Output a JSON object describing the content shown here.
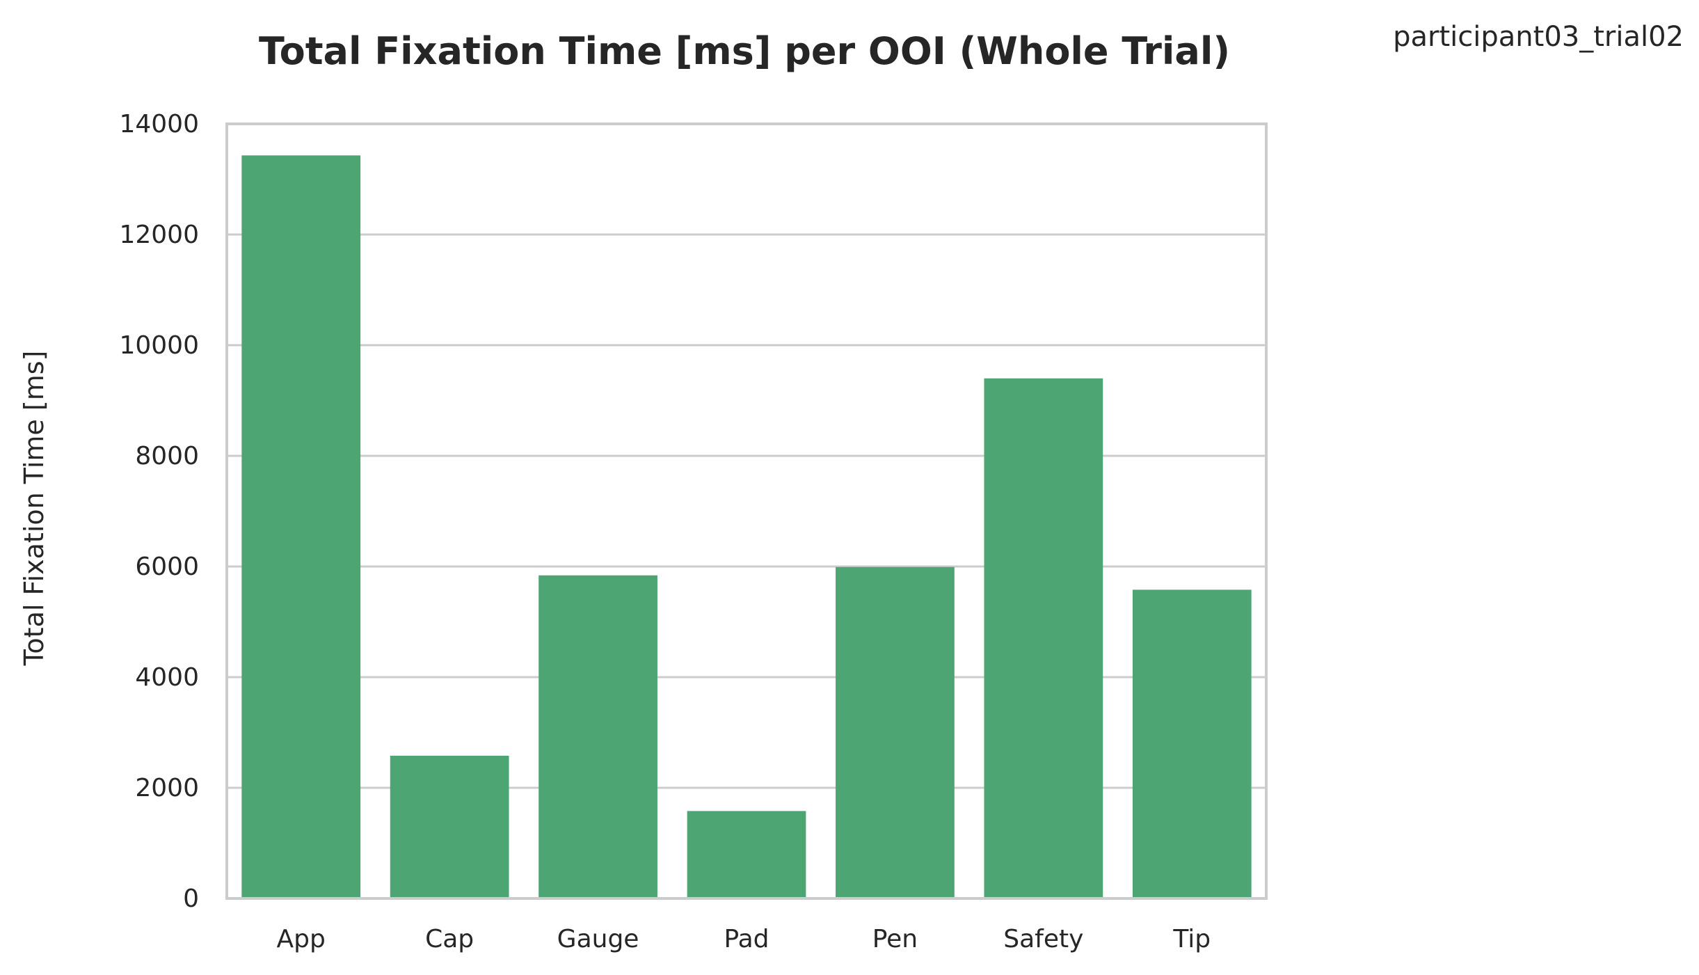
{
  "chart_data": {
    "type": "bar",
    "title": "Total Fixation Time [ms] per OOI (Whole Trial)",
    "annotation": "participant03_trial02",
    "xlabel": "",
    "ylabel": "Total Fixation Time [ms]",
    "categories": [
      "App",
      "Cap",
      "Gauge",
      "Pad",
      "Pen",
      "Safety",
      "Tip"
    ],
    "values": [
      13430,
      2580,
      5840,
      1580,
      5990,
      9400,
      5580
    ],
    "ylim": [
      0,
      14000
    ],
    "yticks": [
      0,
      2000,
      4000,
      6000,
      8000,
      10000,
      12000,
      14000
    ],
    "grid": true,
    "legend": "none",
    "bar_color": "#4ca572",
    "grid_color": "#cccccc",
    "axes_edge_color": "#cccccc"
  }
}
